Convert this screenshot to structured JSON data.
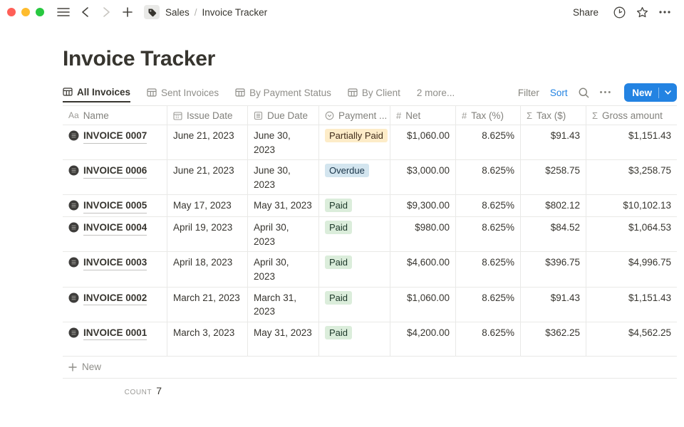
{
  "window": {
    "breadcrumb_workspace": "Sales",
    "breadcrumb_separator": "/",
    "breadcrumb_page": "Invoice Tracker",
    "share_label": "Share"
  },
  "page_title": "Invoice Tracker",
  "view_tabs": {
    "tabs": [
      {
        "label": "All Invoices",
        "active": true
      },
      {
        "label": "Sent Invoices",
        "active": false
      },
      {
        "label": "By Payment Status",
        "active": false
      },
      {
        "label": "By Client",
        "active": false
      }
    ],
    "overflow_label": "2 more..."
  },
  "toolbar": {
    "filter_label": "Filter",
    "sort_label": "Sort",
    "new_label": "New"
  },
  "table": {
    "columns": [
      {
        "key": "name",
        "label": "Name",
        "icon": "text-property-icon",
        "align": "left"
      },
      {
        "key": "issue_date",
        "label": "Issue Date",
        "icon": "calendar-icon",
        "align": "left"
      },
      {
        "key": "due_date",
        "label": "Due Date",
        "icon": "document-icon",
        "align": "left"
      },
      {
        "key": "payment_status",
        "label": "Payment ...",
        "icon": "select-icon",
        "align": "left"
      },
      {
        "key": "net",
        "label": "Net",
        "icon": "hash-icon",
        "align": "right"
      },
      {
        "key": "tax_pct",
        "label": "Tax (%)",
        "icon": "hash-icon",
        "align": "right"
      },
      {
        "key": "tax_usd",
        "label": "Tax ($)",
        "icon": "sigma-icon",
        "align": "right"
      },
      {
        "key": "gross",
        "label": "Gross amount",
        "icon": "sigma-icon",
        "align": "right"
      }
    ],
    "rows": [
      {
        "name": "INVOICE 0007",
        "issue_date": "June 21, 2023",
        "due_date": "June 30, 2023",
        "payment_status": "Partially Paid",
        "status_color": "yellow",
        "net": "$1,060.00",
        "tax_pct": "8.625%",
        "tax_usd": "$91.43",
        "gross": "$1,151.43",
        "tall": false
      },
      {
        "name": "INVOICE 0006",
        "issue_date": "June 21, 2023",
        "due_date": "June 30, 2023",
        "payment_status": "Overdue",
        "status_color": "blue",
        "net": "$3,000.00",
        "tax_pct": "8.625%",
        "tax_usd": "$258.75",
        "gross": "$3,258.75",
        "tall": true
      },
      {
        "name": "INVOICE 0005",
        "issue_date": "May 17, 2023",
        "due_date": "May 31, 2023",
        "payment_status": "Paid",
        "status_color": "green",
        "net": "$9,300.00",
        "tax_pct": "8.625%",
        "tax_usd": "$802.12",
        "gross": "$10,102.13",
        "tall": false
      },
      {
        "name": "INVOICE 0004",
        "issue_date": "April 19, 2023",
        "due_date": "April 30, 2023",
        "payment_status": "Paid",
        "status_color": "green",
        "net": "$980.00",
        "tax_pct": "8.625%",
        "tax_usd": "$84.52",
        "gross": "$1,064.53",
        "tall": true
      },
      {
        "name": "INVOICE 0003",
        "issue_date": "April 18, 2023",
        "due_date": "April 30, 2023",
        "payment_status": "Paid",
        "status_color": "green",
        "net": "$4,600.00",
        "tax_pct": "8.625%",
        "tax_usd": "$396.75",
        "gross": "$4,996.75",
        "tall": false
      },
      {
        "name": "INVOICE 0002",
        "issue_date": "March 21, 2023",
        "due_date": "March 31, 2023",
        "payment_status": "Paid",
        "status_color": "green",
        "net": "$1,060.00",
        "tax_pct": "8.625%",
        "tax_usd": "$91.43",
        "gross": "$1,151.43",
        "tall": true
      },
      {
        "name": "INVOICE 0001",
        "issue_date": "March 3, 2023",
        "due_date": "May 31, 2023",
        "payment_status": "Paid",
        "status_color": "green",
        "net": "$4,200.00",
        "tax_pct": "8.625%",
        "tax_usd": "$362.25",
        "gross": "$4,562.25",
        "tall": true
      }
    ],
    "new_row_label": "New",
    "count_label": "COUNT",
    "count_value": "7"
  },
  "colors": {
    "accent": "#2383e2",
    "text": "#37352f",
    "muted": "#87867f",
    "border": "#e9e9e7",
    "badges": {
      "yellow": {
        "bg": "#fdecc8",
        "text": "#402c1b"
      },
      "blue": {
        "bg": "#d3e5ef",
        "text": "#183347"
      },
      "green": {
        "bg": "#dbeddb",
        "text": "#1c3829"
      }
    },
    "traffic_lights": [
      "#ff5f57",
      "#febc2e",
      "#28c840"
    ]
  }
}
